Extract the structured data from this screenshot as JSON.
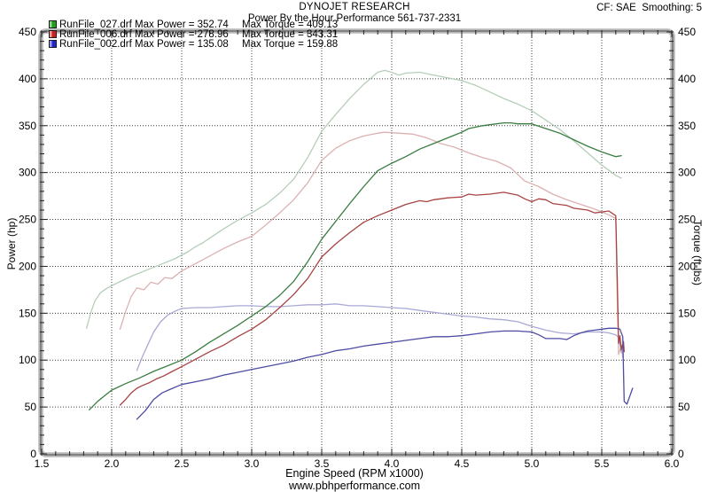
{
  "header": {
    "brand": "DYNOJET RESEARCH",
    "subtitle": "Power By the Hour Performance 561-737-2331",
    "cf_smoothing": "CF: SAE  Smoothing: 5"
  },
  "footer": {
    "website": "www.pbhperformance.com"
  },
  "legend": [
    {
      "file": "RunFile_027.drf",
      "max_power": "Max Power = 352.74",
      "max_torque": "Max Torque = 409.13",
      "swatch_dark": "#1f9e1f",
      "swatch_light": "#8fd98f"
    },
    {
      "file": "RunFile_006.drf",
      "max_power": "Max Power = 278.96",
      "max_torque": "Max Torque = 343.31",
      "swatch_dark": "#cc2020",
      "swatch_light": "#ea9c9c"
    },
    {
      "file": "RunFile_002.drf",
      "max_power": "Max Power = 135.08",
      "max_torque": "Max Torque = 159.88",
      "swatch_dark": "#2424cc",
      "swatch_light": "#9c9ce8"
    }
  ],
  "chart_data": {
    "type": "line",
    "title": "",
    "xlabel": "Engine Speed (RPM x1000)",
    "ylabel_left": "Power (hp)",
    "ylabel_right": "Torque (ft-lbs)",
    "xlim": [
      1.5,
      6.0
    ],
    "ylim": [
      0,
      450
    ],
    "x_major_tick": 0.5,
    "x_minor_tick": 0.1,
    "y_major_tick": 50,
    "y_minor_tick": 10,
    "grid": "dotted",
    "legend_position": "top-left",
    "grid_color": "#3c3c3c",
    "frame_color": "#828282",
    "frame_light": "#c9c9c9",
    "series": [
      {
        "id": "torque-027",
        "name": "RunFile_027.drf Torque (ft-lbs)",
        "axis": "right",
        "color": "#b6ceb8",
        "points": [
          [
            1.82,
            134
          ],
          [
            1.85,
            150
          ],
          [
            1.88,
            163
          ],
          [
            1.92,
            172
          ],
          [
            1.97,
            177
          ],
          [
            2.05,
            183
          ],
          [
            2.15,
            190
          ],
          [
            2.25,
            196
          ],
          [
            2.35,
            202
          ],
          [
            2.45,
            208
          ],
          [
            2.55,
            216
          ],
          [
            2.6,
            221
          ],
          [
            2.65,
            225
          ],
          [
            2.7,
            230
          ],
          [
            2.8,
            240
          ],
          [
            2.9,
            249
          ],
          [
            3.0,
            257
          ],
          [
            3.1,
            266
          ],
          [
            3.2,
            278
          ],
          [
            3.3,
            293
          ],
          [
            3.4,
            316
          ],
          [
            3.45,
            330
          ],
          [
            3.5,
            344
          ],
          [
            3.6,
            362
          ],
          [
            3.7,
            379
          ],
          [
            3.8,
            394
          ],
          [
            3.9,
            407
          ],
          [
            3.95,
            409
          ],
          [
            4.0,
            407
          ],
          [
            4.05,
            404
          ],
          [
            4.1,
            406
          ],
          [
            4.2,
            407
          ],
          [
            4.3,
            404
          ],
          [
            4.4,
            401
          ],
          [
            4.5,
            398
          ],
          [
            4.6,
            393
          ],
          [
            4.7,
            386
          ],
          [
            4.8,
            379
          ],
          [
            4.9,
            373
          ],
          [
            5.0,
            366
          ],
          [
            5.1,
            356
          ],
          [
            5.2,
            346
          ],
          [
            5.3,
            334
          ],
          [
            5.4,
            321
          ],
          [
            5.5,
            308
          ],
          [
            5.6,
            297
          ],
          [
            5.64,
            294
          ]
        ]
      },
      {
        "id": "torque-006",
        "name": "RunFile_006.drf Torque (ft-lbs)",
        "axis": "right",
        "color": "#dcb1b1",
        "points": [
          [
            2.06,
            133
          ],
          [
            2.1,
            152
          ],
          [
            2.14,
            168
          ],
          [
            2.18,
            177
          ],
          [
            2.23,
            175
          ],
          [
            2.28,
            183
          ],
          [
            2.33,
            181
          ],
          [
            2.38,
            188
          ],
          [
            2.43,
            187
          ],
          [
            2.5,
            195
          ],
          [
            2.6,
            203
          ],
          [
            2.7,
            211
          ],
          [
            2.8,
            219
          ],
          [
            2.9,
            226
          ],
          [
            3.0,
            232
          ],
          [
            3.1,
            244
          ],
          [
            3.2,
            257
          ],
          [
            3.3,
            271
          ],
          [
            3.4,
            289
          ],
          [
            3.5,
            313
          ],
          [
            3.6,
            326
          ],
          [
            3.7,
            334
          ],
          [
            3.8,
            339
          ],
          [
            3.9,
            342
          ],
          [
            3.95,
            343
          ],
          [
            4.05,
            342
          ],
          [
            4.15,
            341
          ],
          [
            4.25,
            337
          ],
          [
            4.35,
            331
          ],
          [
            4.45,
            327
          ],
          [
            4.55,
            321
          ],
          [
            4.65,
            316
          ],
          [
            4.75,
            312
          ],
          [
            4.85,
            305
          ],
          [
            4.95,
            291
          ],
          [
            5.05,
            285
          ],
          [
            5.15,
            277
          ],
          [
            5.25,
            271
          ],
          [
            5.35,
            266
          ],
          [
            5.45,
            261
          ],
          [
            5.55,
            255
          ],
          [
            5.6,
            251
          ],
          [
            5.61,
            170
          ],
          [
            5.62,
            106
          ],
          [
            5.64,
            116
          ],
          [
            5.65,
            103
          ]
        ]
      },
      {
        "id": "torque-002",
        "name": "RunFile_002.drf Torque (ft-lbs)",
        "axis": "right",
        "color": "#a9a9d6",
        "points": [
          [
            2.18,
            89
          ],
          [
            2.22,
            104
          ],
          [
            2.26,
            117
          ],
          [
            2.3,
            130
          ],
          [
            2.35,
            141
          ],
          [
            2.4,
            148
          ],
          [
            2.45,
            152
          ],
          [
            2.5,
            155
          ],
          [
            2.6,
            156
          ],
          [
            2.7,
            156
          ],
          [
            2.8,
            157
          ],
          [
            2.9,
            158
          ],
          [
            3.0,
            158
          ],
          [
            3.1,
            157
          ],
          [
            3.2,
            157
          ],
          [
            3.3,
            158
          ],
          [
            3.4,
            159
          ],
          [
            3.5,
            159
          ],
          [
            3.6,
            160
          ],
          [
            3.7,
            158
          ],
          [
            3.8,
            158
          ],
          [
            3.9,
            157
          ],
          [
            4.0,
            156
          ],
          [
            4.1,
            155
          ],
          [
            4.2,
            153
          ],
          [
            4.3,
            151
          ],
          [
            4.4,
            149
          ],
          [
            4.5,
            147
          ],
          [
            4.6,
            146
          ],
          [
            4.7,
            144
          ],
          [
            4.8,
            143
          ],
          [
            4.9,
            141
          ],
          [
            5.0,
            136
          ],
          [
            5.1,
            132
          ],
          [
            5.2,
            129
          ],
          [
            5.3,
            128
          ],
          [
            5.4,
            130
          ],
          [
            5.5,
            130
          ],
          [
            5.55,
            129
          ],
          [
            5.6,
            127
          ],
          [
            5.62,
            124
          ],
          [
            5.64,
            108
          ]
        ]
      },
      {
        "id": "power-027",
        "name": "RunFile_027.drf Power (hp)",
        "axis": "left",
        "color": "#3a7d3f",
        "points": [
          [
            1.84,
            47
          ],
          [
            1.9,
            56
          ],
          [
            1.95,
            62
          ],
          [
            2.0,
            68
          ],
          [
            2.1,
            75
          ],
          [
            2.2,
            81
          ],
          [
            2.3,
            88
          ],
          [
            2.4,
            94
          ],
          [
            2.5,
            100
          ],
          [
            2.6,
            109
          ],
          [
            2.7,
            119
          ],
          [
            2.8,
            128
          ],
          [
            2.9,
            137
          ],
          [
            3.0,
            147
          ],
          [
            3.1,
            157
          ],
          [
            3.2,
            169
          ],
          [
            3.3,
            184
          ],
          [
            3.4,
            205
          ],
          [
            3.5,
            229
          ],
          [
            3.6,
            248
          ],
          [
            3.7,
            267
          ],
          [
            3.8,
            285
          ],
          [
            3.9,
            302
          ],
          [
            4.0,
            310
          ],
          [
            4.1,
            317
          ],
          [
            4.2,
            325
          ],
          [
            4.3,
            331
          ],
          [
            4.4,
            337
          ],
          [
            4.5,
            343
          ],
          [
            4.55,
            347
          ],
          [
            4.65,
            350
          ],
          [
            4.7,
            351
          ],
          [
            4.8,
            353
          ],
          [
            4.85,
            353
          ],
          [
            4.9,
            352
          ],
          [
            5.0,
            352
          ],
          [
            5.1,
            347
          ],
          [
            5.2,
            342
          ],
          [
            5.3,
            335
          ],
          [
            5.4,
            328
          ],
          [
            5.5,
            322
          ],
          [
            5.6,
            317
          ],
          [
            5.64,
            318
          ]
        ]
      },
      {
        "id": "power-006",
        "name": "RunFile_006.drf Power (hp)",
        "axis": "left",
        "color": "#a84343",
        "points": [
          [
            2.06,
            52
          ],
          [
            2.1,
            58
          ],
          [
            2.14,
            65
          ],
          [
            2.18,
            70
          ],
          [
            2.22,
            73
          ],
          [
            2.27,
            76
          ],
          [
            2.32,
            80
          ],
          [
            2.37,
            83
          ],
          [
            2.42,
            87
          ],
          [
            2.5,
            93
          ],
          [
            2.6,
            101
          ],
          [
            2.7,
            109
          ],
          [
            2.8,
            116
          ],
          [
            2.9,
            125
          ],
          [
            3.0,
            133
          ],
          [
            3.1,
            143
          ],
          [
            3.2,
            156
          ],
          [
            3.3,
            170
          ],
          [
            3.4,
            187
          ],
          [
            3.5,
            210
          ],
          [
            3.6,
            224
          ],
          [
            3.7,
            236
          ],
          [
            3.8,
            247
          ],
          [
            3.9,
            254
          ],
          [
            4.0,
            260
          ],
          [
            4.1,
            266
          ],
          [
            4.2,
            270
          ],
          [
            4.25,
            269
          ],
          [
            4.3,
            271
          ],
          [
            4.4,
            273
          ],
          [
            4.5,
            274
          ],
          [
            4.55,
            277
          ],
          [
            4.6,
            276
          ],
          [
            4.7,
            277
          ],
          [
            4.8,
            279
          ],
          [
            4.9,
            276
          ],
          [
            4.95,
            272
          ],
          [
            5.0,
            269
          ],
          [
            5.05,
            272
          ],
          [
            5.1,
            271
          ],
          [
            5.15,
            267
          ],
          [
            5.25,
            265
          ],
          [
            5.3,
            262
          ],
          [
            5.4,
            260
          ],
          [
            5.45,
            257
          ],
          [
            5.5,
            258
          ],
          [
            5.55,
            259
          ],
          [
            5.58,
            256
          ],
          [
            5.6,
            254
          ],
          [
            5.61,
            190
          ],
          [
            5.62,
            118
          ],
          [
            5.63,
            126
          ],
          [
            5.64,
            111
          ],
          [
            5.655,
            120
          ],
          [
            5.66,
            109
          ]
        ]
      },
      {
        "id": "power-002",
        "name": "RunFile_002.drf Power (hp)",
        "axis": "left",
        "color": "#4c4ca4",
        "points": [
          [
            2.18,
            37
          ],
          [
            2.24,
            46
          ],
          [
            2.3,
            58
          ],
          [
            2.36,
            65
          ],
          [
            2.42,
            69
          ],
          [
            2.5,
            74
          ],
          [
            2.6,
            77
          ],
          [
            2.7,
            80
          ],
          [
            2.8,
            84
          ],
          [
            2.9,
            87
          ],
          [
            3.0,
            90
          ],
          [
            3.1,
            93
          ],
          [
            3.2,
            96
          ],
          [
            3.3,
            99
          ],
          [
            3.4,
            103
          ],
          [
            3.5,
            106
          ],
          [
            3.6,
            110
          ],
          [
            3.7,
            112
          ],
          [
            3.8,
            115
          ],
          [
            3.9,
            117
          ],
          [
            4.0,
            119
          ],
          [
            4.1,
            121
          ],
          [
            4.2,
            123
          ],
          [
            4.3,
            125
          ],
          [
            4.4,
            125
          ],
          [
            4.5,
            126
          ],
          [
            4.6,
            128
          ],
          [
            4.7,
            130
          ],
          [
            4.8,
            131
          ],
          [
            4.9,
            131
          ],
          [
            5.0,
            130
          ],
          [
            5.05,
            127
          ],
          [
            5.1,
            123
          ],
          [
            5.2,
            123
          ],
          [
            5.25,
            122
          ],
          [
            5.3,
            126
          ],
          [
            5.35,
            129
          ],
          [
            5.4,
            131
          ],
          [
            5.45,
            132
          ],
          [
            5.5,
            133
          ],
          [
            5.55,
            134
          ],
          [
            5.6,
            134
          ],
          [
            5.63,
            133
          ],
          [
            5.65,
            125
          ],
          [
            5.66,
            56
          ],
          [
            5.68,
            53
          ],
          [
            5.72,
            70
          ]
        ]
      }
    ]
  }
}
